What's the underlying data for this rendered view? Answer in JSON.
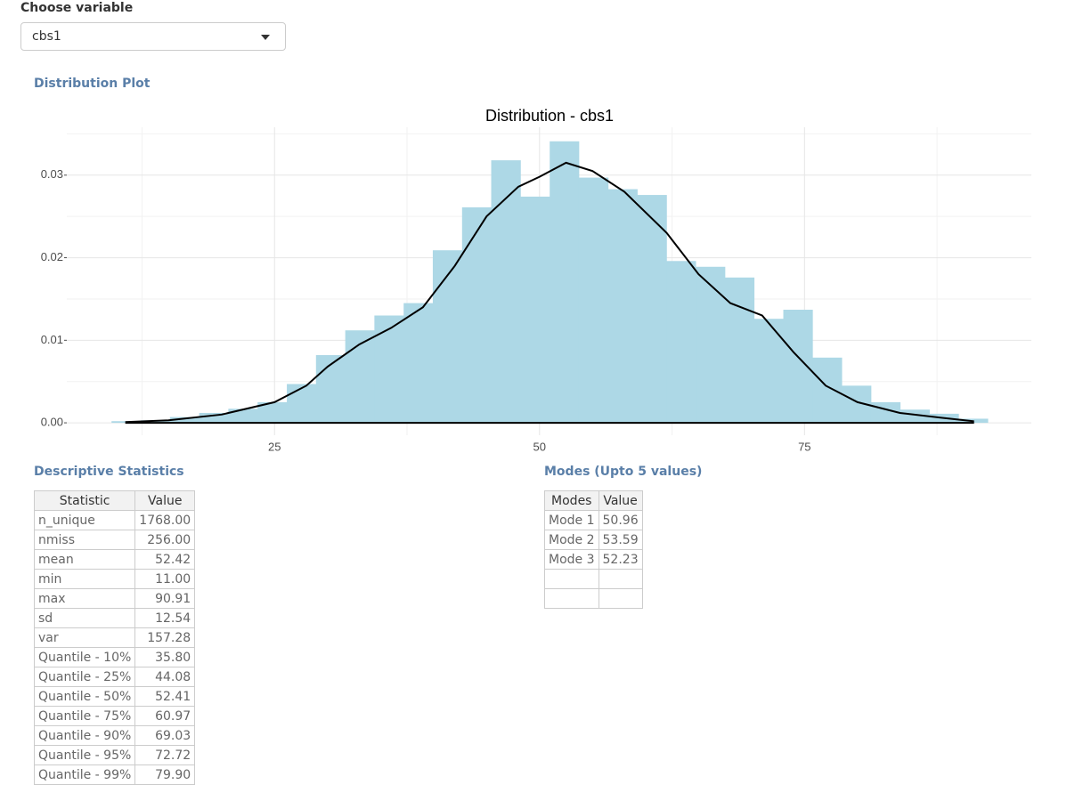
{
  "ui": {
    "select_label": "Choose variable",
    "select_value": "cbs1",
    "plot_heading": "Distribution Plot",
    "stats_heading": "Descriptive Statistics",
    "modes_heading": "Modes (Upto 5 values)"
  },
  "stats_table": {
    "header": [
      "Statistic",
      "Value"
    ],
    "rows": [
      [
        "n_unique",
        "1768.00"
      ],
      [
        "nmiss",
        "256.00"
      ],
      [
        "mean",
        "52.42"
      ],
      [
        "min",
        "11.00"
      ],
      [
        "max",
        "90.91"
      ],
      [
        "sd",
        "12.54"
      ],
      [
        "var",
        "157.28"
      ],
      [
        "Quantile - 10%",
        "35.80"
      ],
      [
        "Quantile - 25%",
        "44.08"
      ],
      [
        "Quantile - 50%",
        "52.41"
      ],
      [
        "Quantile - 75%",
        "60.97"
      ],
      [
        "Quantile - 90%",
        "69.03"
      ],
      [
        "Quantile - 95%",
        "72.72"
      ],
      [
        "Quantile - 99%",
        "79.90"
      ]
    ]
  },
  "modes_table": {
    "header": [
      "Modes",
      "Value"
    ],
    "rows": [
      [
        "Mode 1",
        "50.96"
      ],
      [
        "Mode 2",
        "53.59"
      ],
      [
        "Mode 3",
        "52.23"
      ]
    ]
  },
  "chart_data": {
    "type": "histogram",
    "title": "Distribution - cbs1",
    "color": "#add8e6",
    "bins": [
      9.62,
      12.38,
      15.13,
      17.89,
      20.64,
      23.4,
      26.16,
      28.91,
      31.67,
      34.42,
      37.18,
      39.93,
      42.69,
      45.44,
      48.2,
      50.96,
      53.71,
      56.47,
      59.22,
      61.98,
      64.73,
      67.49,
      70.24,
      73.0,
      75.75,
      78.51,
      81.27,
      84.02,
      86.78,
      89.53,
      92.29
    ],
    "values": [
      0.0002,
      0.0003,
      0.0007,
      0.0012,
      0.0017,
      0.0025,
      0.0047,
      0.0082,
      0.0112,
      0.013,
      0.0145,
      0.0209,
      0.0261,
      0.0318,
      0.0274,
      0.0341,
      0.0297,
      0.0283,
      0.0276,
      0.0196,
      0.0189,
      0.0176,
      0.0126,
      0.0137,
      0.0079,
      0.0045,
      0.0025,
      0.0016,
      0.0011,
      0.0005
    ],
    "density": {
      "color": "#000000",
      "x": [
        11,
        15,
        20,
        25,
        28,
        30,
        33,
        36,
        39,
        42,
        45,
        48,
        50,
        52.5,
        55,
        58,
        62,
        65,
        68,
        71,
        74,
        77,
        80,
        84,
        88,
        90.91
      ],
      "values": [
        0.0001,
        0.0003,
        0.001,
        0.0025,
        0.0045,
        0.0068,
        0.0095,
        0.0115,
        0.014,
        0.019,
        0.025,
        0.0286,
        0.0298,
        0.0315,
        0.0305,
        0.028,
        0.023,
        0.018,
        0.0145,
        0.013,
        0.0085,
        0.0045,
        0.0025,
        0.0012,
        0.0006,
        0.0002
      ]
    },
    "xlim": [
      5.4,
      96.4
    ],
    "xticks": [
      25,
      50,
      75
    ],
    "x_minor_grid": [
      12.5,
      37.5,
      62.5,
      87.5
    ],
    "ylim": [
      -0.0015,
      0.0358
    ],
    "yticks": [
      {
        "value": 0,
        "label": "0.00"
      },
      {
        "value": 0.01,
        "label": "0.01"
      },
      {
        "value": 0.02,
        "label": "0.02"
      },
      {
        "value": 0.03,
        "label": "0.03"
      }
    ],
    "y_minor_grid": [
      0.005,
      0.015,
      0.025,
      0.035
    ],
    "grid": true
  }
}
